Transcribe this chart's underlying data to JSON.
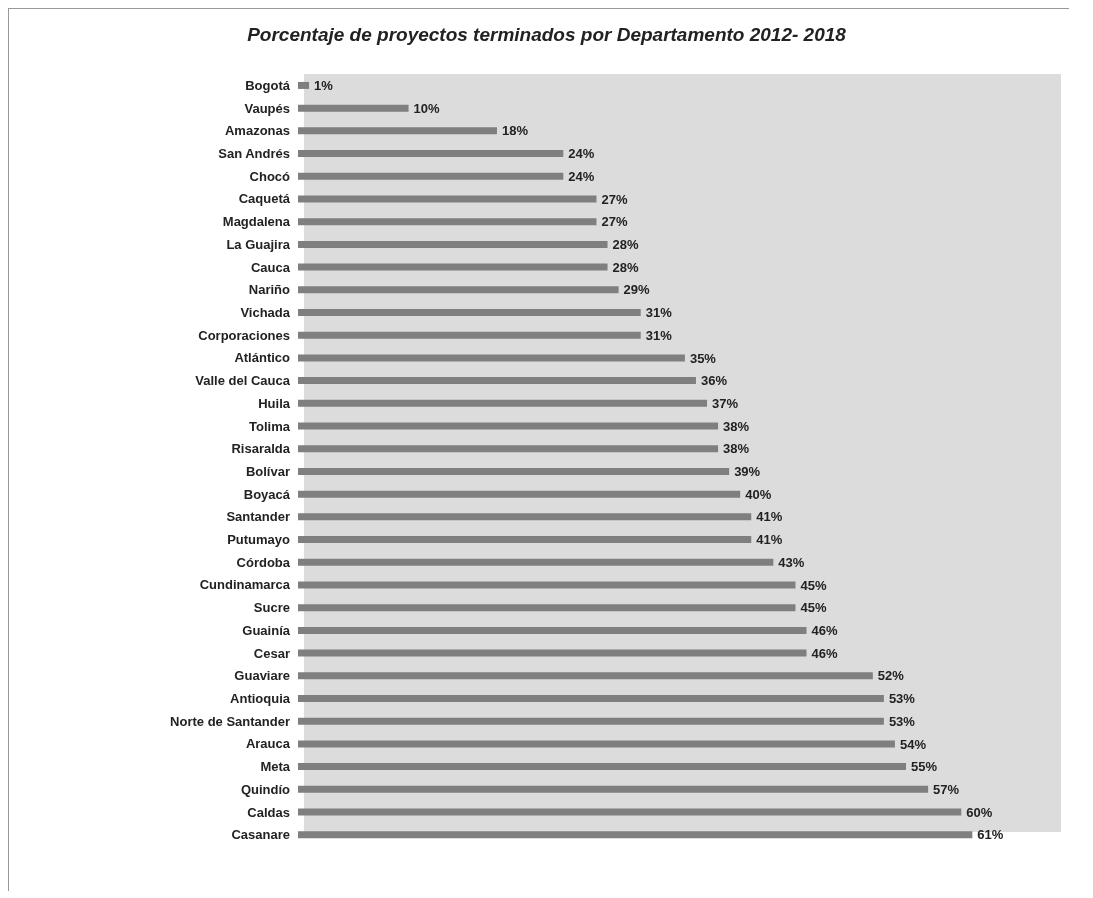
{
  "chart_data": {
    "type": "bar",
    "orientation": "horizontal",
    "title": "Porcentaje de proyectos terminados por Departamento 2012- 2018",
    "categories": [
      "Bogotá",
      "Vaupés",
      "Amazonas",
      "San Andrés",
      "Chocó",
      "Caquetá",
      "Magdalena",
      "La Guajira",
      "Cauca",
      "Nariño",
      "Vichada",
      "Corporaciones",
      "Atlántico",
      "Valle del Cauca",
      "Huila",
      "Tolima",
      "Risaralda",
      "Bolívar",
      "Boyacá",
      "Santander",
      "Putumayo",
      "Córdoba",
      "Cundinamarca",
      "Sucre",
      "Guainía",
      "Cesar",
      "Guaviare",
      "Antioquia",
      "Norte de Santander",
      "Arauca",
      "Meta",
      "Quindío",
      "Caldas",
      "Casanare"
    ],
    "values": [
      1,
      10,
      18,
      24,
      24,
      27,
      27,
      28,
      28,
      29,
      31,
      31,
      35,
      36,
      37,
      38,
      38,
      39,
      40,
      41,
      41,
      43,
      45,
      45,
      46,
      46,
      52,
      53,
      53,
      54,
      55,
      57,
      60,
      61
    ],
    "value_labels": [
      "1%",
      "10%",
      "18%",
      "24%",
      "24%",
      "27%",
      "27%",
      "28%",
      "28%",
      "29%",
      "31%",
      "31%",
      "35%",
      "36%",
      "37%",
      "38%",
      "38%",
      "39%",
      "40%",
      "41%",
      "41%",
      "43%",
      "45%",
      "45%",
      "46%",
      "46%",
      "52%",
      "53%",
      "53%",
      "54%",
      "55%",
      "57%",
      "60%",
      "61%"
    ],
    "color": "#7f7f7f",
    "grid": false,
    "legend": false
  }
}
